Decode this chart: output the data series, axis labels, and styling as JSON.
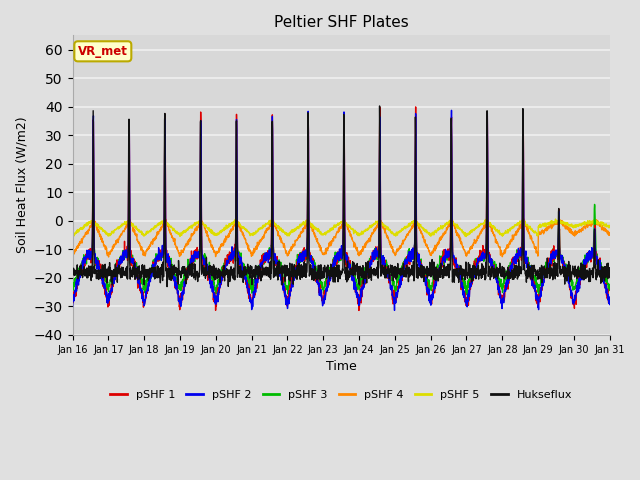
{
  "title": "Peltier SHF Plates",
  "xlabel": "Time",
  "ylabel": "Soil Heat Flux (W/m2)",
  "ylim": [
    -40,
    65
  ],
  "yticks": [
    -40,
    -30,
    -20,
    -10,
    0,
    10,
    20,
    30,
    40,
    50,
    60
  ],
  "fig_bg_color": "#e0e0e0",
  "plot_bg_color": "#d8d8d8",
  "grid_color": "#f0f0f0",
  "annotation_text": "VR_met",
  "annotation_bg": "#ffffcc",
  "annotation_border": "#bbaa00",
  "annotation_text_color": "#cc0000",
  "series_colors": {
    "pSHF1": "#dd0000",
    "pSHF2": "#0000ee",
    "pSHF3": "#00bb00",
    "pSHF4": "#ff8800",
    "pSHF5": "#dddd00",
    "Hukseflux": "#111111"
  },
  "legend_labels": [
    "pSHF 1",
    "pSHF 2",
    "pSHF 3",
    "pSHF 4",
    "pSHF 5",
    "Hukseflux"
  ],
  "n_days": 15,
  "start_day": 16
}
